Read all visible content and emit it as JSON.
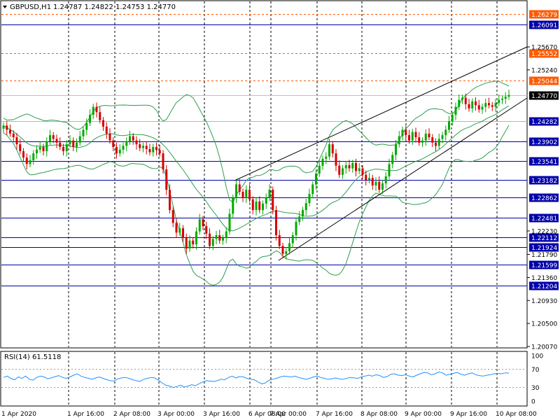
{
  "header": {
    "symbol": "GBPUSD,H1",
    "quote": "1.24787 1.24822 1.24753 1.24770"
  },
  "rsi_header": "RSI(14) 61.5118",
  "colors": {
    "up": "#00aa00",
    "down": "#d40000",
    "bands": "#2e9e4e",
    "rsi": "#1e90ff",
    "hline_blue": "#0000aa",
    "hline_orange": "#ff5a00",
    "hline_yellow": "#d8c400"
  },
  "chart_data": [
    {
      "type": "candlestick",
      "title": "GBPUSD,H1",
      "y_scale_labels": [
        "1.25670",
        "1.25240",
        "1.22230",
        "1.21790",
        "1.21360",
        "1.20930",
        "1.20500",
        "1.20070"
      ],
      "x_tick_labels": [
        "1 Apr 2020",
        "1 Apr 16:00",
        "2 Apr 08:00",
        "3 Apr 00:00",
        "3 Apr 16:00",
        "6 Apr 08:00",
        "7 Apr 00:00",
        "7 Apr 16:00",
        "8 Apr 08:00",
        "9 Apr 00:00",
        "9 Apr 16:00",
        "10 Apr 08:00"
      ],
      "price_lines": [
        {
          "value": 1.26279,
          "label": "1.26279",
          "style": "dashed",
          "color": "orange"
        },
        {
          "value": 1.26091,
          "label": "1.26091",
          "style": "solid",
          "color": "blue"
        },
        {
          "value": 1.25552,
          "label": "1.25552",
          "style": "dashed",
          "color": "orange"
        },
        {
          "value": 1.25044,
          "label": "1.25044",
          "style": "dashed",
          "color": "orange"
        },
        {
          "value": 1.2477,
          "label": "1.24770",
          "style": "current",
          "color": "black"
        },
        {
          "value": 1.24282,
          "label": "1.24282",
          "style": "solid",
          "color": "yellow"
        },
        {
          "value": 1.23902,
          "label": "1.23902",
          "style": "solid",
          "color": "blue"
        },
        {
          "value": 1.23541,
          "label": "1.23541",
          "style": "solid",
          "color": "blue"
        },
        {
          "value": 1.23182,
          "label": "1.23182",
          "style": "solid",
          "color": "blue"
        },
        {
          "value": 1.22862,
          "label": "1.22862",
          "style": "solid",
          "color": "blue"
        },
        {
          "value": 1.22481,
          "label": "1.22481",
          "style": "solid",
          "color": "blue"
        },
        {
          "value": 1.22112,
          "label": "1.22112",
          "style": "solid",
          "color": "blue"
        },
        {
          "value": 1.21924,
          "label": "1.21924",
          "style": "solid",
          "color": "blue"
        },
        {
          "value": 1.21599,
          "label": "1.21599",
          "style": "solid",
          "color": "blue"
        },
        {
          "value": 1.21204,
          "label": "1.21204",
          "style": "solid",
          "color": "blue"
        }
      ],
      "candles_close": [
        1.242,
        1.2412,
        1.2405,
        1.2398,
        1.2385,
        1.2372,
        1.236,
        1.2348,
        1.2355,
        1.2368,
        1.2375,
        1.238,
        1.2372,
        1.239,
        1.2402,
        1.2395,
        1.2388,
        1.238,
        1.2372,
        1.2385,
        1.2392,
        1.238,
        1.2388,
        1.24,
        1.2412,
        1.2425,
        1.244,
        1.2455,
        1.2445,
        1.243,
        1.2418,
        1.2405,
        1.2392,
        1.238,
        1.2368,
        1.2375,
        1.2382,
        1.239,
        1.24,
        1.2392,
        1.2385,
        1.2378,
        1.2382,
        1.2376,
        1.237,
        1.238,
        1.2374,
        1.2368,
        1.2338,
        1.23,
        1.2262,
        1.2238,
        1.222,
        1.2228,
        1.221,
        1.219,
        1.2205,
        1.2198,
        1.2222,
        1.2245,
        1.2232,
        1.2218,
        1.2195,
        1.2208,
        1.2215,
        1.2205,
        1.221,
        1.2222,
        1.2255,
        1.2285,
        1.231,
        1.2296,
        1.2285,
        1.23,
        1.2282,
        1.2262,
        1.2278,
        1.2262,
        1.2274,
        1.2285,
        1.23,
        1.2262,
        1.2215,
        1.2195,
        1.218,
        1.2185,
        1.22,
        1.2215,
        1.224,
        1.225,
        1.2262,
        1.2275,
        1.2292,
        1.231,
        1.233,
        1.2345,
        1.2358,
        1.2362,
        1.2385,
        1.2368,
        1.2345,
        1.2328,
        1.234,
        1.2346,
        1.234,
        1.235,
        1.2335,
        1.234,
        1.2328,
        1.2318,
        1.2322,
        1.2308,
        1.2315,
        1.23,
        1.2312,
        1.2325,
        1.2348,
        1.2365,
        1.2385,
        1.24,
        1.2412,
        1.2402,
        1.2392,
        1.2408,
        1.2398,
        1.2388,
        1.2392,
        1.2405,
        1.2398,
        1.2388,
        1.2382,
        1.2395,
        1.2402,
        1.2412,
        1.2428,
        1.244,
        1.2455,
        1.2468,
        1.2472,
        1.246,
        1.2452,
        1.2465,
        1.2458,
        1.245,
        1.2455,
        1.2462,
        1.2458,
        1.2455,
        1.2462,
        1.2468,
        1.247,
        1.2474,
        1.2477
      ]
    },
    {
      "type": "line",
      "title": "RSI(14) 61.5118",
      "y_axis_labels": [
        "100",
        "70",
        "30",
        "0"
      ],
      "levels": [
        70,
        30
      ],
      "values": [
        52,
        55,
        50,
        47,
        53,
        50,
        55,
        48,
        46,
        52,
        55,
        53,
        49,
        51,
        54,
        56,
        52,
        50,
        53,
        57,
        60,
        55,
        52,
        50,
        48,
        51,
        53,
        50,
        47,
        45,
        44,
        49,
        51,
        52,
        50,
        47,
        45,
        43,
        48,
        50,
        52,
        51,
        46,
        40,
        35,
        33,
        30,
        32,
        35,
        31,
        33,
        36,
        34,
        38,
        42,
        45,
        44,
        43,
        45,
        48,
        47,
        52,
        55,
        51,
        54,
        53,
        50,
        48,
        47,
        42,
        38,
        40,
        46,
        48,
        50,
        53,
        55,
        54,
        53,
        55,
        52,
        50,
        48,
        50,
        53,
        55,
        52,
        50,
        48,
        49,
        51,
        49,
        48,
        50,
        52,
        51,
        50,
        53,
        55,
        57,
        55,
        58,
        56,
        52,
        54,
        59,
        60,
        57,
        56,
        58,
        55,
        53,
        57,
        60,
        63,
        62,
        58,
        60,
        64,
        62,
        57,
        59,
        61,
        63,
        59,
        57,
        60,
        62,
        58,
        56,
        55,
        57,
        58,
        60,
        61,
        60,
        62,
        61.5
      ]
    }
  ]
}
